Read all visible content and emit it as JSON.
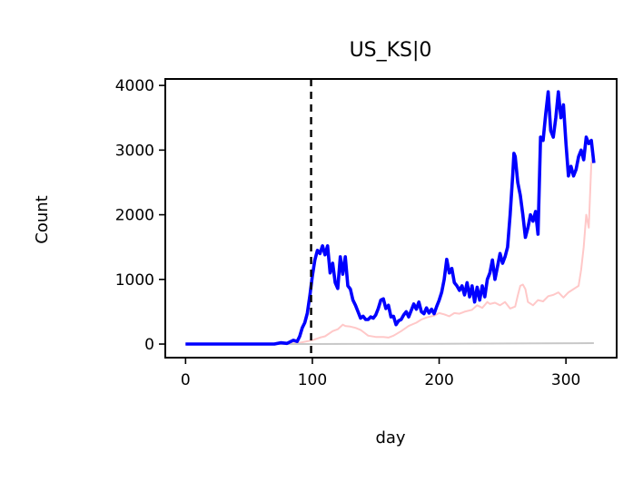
{
  "chart_data": {
    "type": "line",
    "title": "US_KS|0",
    "xlabel": "day",
    "ylabel": "Count",
    "xlim": [
      -16,
      340
    ],
    "ylim": [
      -210,
      4100
    ],
    "xticks": [
      0,
      100,
      200,
      300
    ],
    "yticks": [
      0,
      1000,
      2000,
      3000,
      4000
    ],
    "vline_x": 99,
    "series": [
      {
        "color": "#0000ff",
        "style": "thick",
        "points": [
          [
            0,
            0
          ],
          [
            70,
            0
          ],
          [
            75,
            20
          ],
          [
            80,
            10
          ],
          [
            85,
            60
          ],
          [
            88,
            40
          ],
          [
            90,
            120
          ],
          [
            92,
            250
          ],
          [
            94,
            330
          ],
          [
            96,
            480
          ],
          [
            98,
            750
          ],
          [
            100,
            1050
          ],
          [
            102,
            1300
          ],
          [
            104,
            1450
          ],
          [
            106,
            1400
          ],
          [
            108,
            1520
          ],
          [
            110,
            1380
          ],
          [
            112,
            1520
          ],
          [
            114,
            1100
          ],
          [
            116,
            1250
          ],
          [
            118,
            950
          ],
          [
            120,
            860
          ],
          [
            122,
            1350
          ],
          [
            124,
            1080
          ],
          [
            126,
            1350
          ],
          [
            128,
            900
          ],
          [
            130,
            850
          ],
          [
            132,
            680
          ],
          [
            134,
            600
          ],
          [
            136,
            500
          ],
          [
            138,
            400
          ],
          [
            140,
            430
          ],
          [
            142,
            380
          ],
          [
            144,
            380
          ],
          [
            146,
            420
          ],
          [
            148,
            400
          ],
          [
            150,
            450
          ],
          [
            152,
            550
          ],
          [
            154,
            680
          ],
          [
            156,
            700
          ],
          [
            158,
            550
          ],
          [
            160,
            600
          ],
          [
            162,
            420
          ],
          [
            164,
            430
          ],
          [
            166,
            300
          ],
          [
            168,
            360
          ],
          [
            170,
            380
          ],
          [
            172,
            450
          ],
          [
            174,
            500
          ],
          [
            176,
            420
          ],
          [
            178,
            520
          ],
          [
            180,
            620
          ],
          [
            182,
            540
          ],
          [
            184,
            650
          ],
          [
            186,
            500
          ],
          [
            188,
            470
          ],
          [
            190,
            560
          ],
          [
            192,
            480
          ],
          [
            194,
            540
          ],
          [
            196,
            470
          ],
          [
            198,
            580
          ],
          [
            200,
            680
          ],
          [
            202,
            800
          ],
          [
            204,
            1000
          ],
          [
            206,
            1310
          ],
          [
            208,
            1100
          ],
          [
            210,
            1170
          ],
          [
            212,
            950
          ],
          [
            214,
            900
          ],
          [
            216,
            830
          ],
          [
            218,
            900
          ],
          [
            220,
            760
          ],
          [
            222,
            950
          ],
          [
            224,
            730
          ],
          [
            226,
            900
          ],
          [
            228,
            650
          ],
          [
            230,
            880
          ],
          [
            232,
            680
          ],
          [
            234,
            900
          ],
          [
            236,
            730
          ],
          [
            238,
            1000
          ],
          [
            240,
            1100
          ],
          [
            242,
            1300
          ],
          [
            244,
            1000
          ],
          [
            246,
            1200
          ],
          [
            248,
            1400
          ],
          [
            250,
            1250
          ],
          [
            252,
            1350
          ],
          [
            254,
            1500
          ],
          [
            256,
            2000
          ],
          [
            258,
            2600
          ],
          [
            259,
            2950
          ],
          [
            260,
            2900
          ],
          [
            262,
            2500
          ],
          [
            264,
            2300
          ],
          [
            266,
            2000
          ],
          [
            268,
            1650
          ],
          [
            270,
            1800
          ],
          [
            272,
            2000
          ],
          [
            274,
            1900
          ],
          [
            276,
            2050
          ],
          [
            278,
            1700
          ],
          [
            280,
            3200
          ],
          [
            282,
            3150
          ],
          [
            284,
            3550
          ],
          [
            286,
            3900
          ],
          [
            288,
            3300
          ],
          [
            290,
            3200
          ],
          [
            292,
            3500
          ],
          [
            294,
            3900
          ],
          [
            296,
            3500
          ],
          [
            298,
            3700
          ],
          [
            300,
            3100
          ],
          [
            302,
            2600
          ],
          [
            304,
            2750
          ],
          [
            306,
            2600
          ],
          [
            308,
            2700
          ],
          [
            310,
            2900
          ],
          [
            312,
            3000
          ],
          [
            314,
            2850
          ],
          [
            316,
            3200
          ],
          [
            318,
            3100
          ],
          [
            320,
            3150
          ],
          [
            322,
            2800
          ]
        ]
      },
      {
        "color": "#ffc8c8",
        "style": "thin",
        "points": [
          [
            0,
            0
          ],
          [
            80,
            0
          ],
          [
            90,
            20
          ],
          [
            100,
            60
          ],
          [
            106,
            100
          ],
          [
            110,
            120
          ],
          [
            116,
            200
          ],
          [
            120,
            230
          ],
          [
            124,
            300
          ],
          [
            126,
            280
          ],
          [
            130,
            270
          ],
          [
            134,
            250
          ],
          [
            138,
            220
          ],
          [
            140,
            190
          ],
          [
            144,
            130
          ],
          [
            150,
            110
          ],
          [
            156,
            110
          ],
          [
            160,
            100
          ],
          [
            164,
            130
          ],
          [
            170,
            200
          ],
          [
            176,
            280
          ],
          [
            182,
            330
          ],
          [
            186,
            380
          ],
          [
            190,
            410
          ],
          [
            196,
            440
          ],
          [
            200,
            480
          ],
          [
            204,
            460
          ],
          [
            208,
            430
          ],
          [
            212,
            480
          ],
          [
            216,
            470
          ],
          [
            220,
            500
          ],
          [
            226,
            530
          ],
          [
            230,
            600
          ],
          [
            234,
            560
          ],
          [
            238,
            650
          ],
          [
            240,
            620
          ],
          [
            244,
            640
          ],
          [
            248,
            600
          ],
          [
            252,
            650
          ],
          [
            256,
            550
          ],
          [
            260,
            580
          ],
          [
            262,
            750
          ],
          [
            264,
            900
          ],
          [
            266,
            920
          ],
          [
            268,
            850
          ],
          [
            270,
            650
          ],
          [
            274,
            600
          ],
          [
            278,
            680
          ],
          [
            282,
            660
          ],
          [
            286,
            740
          ],
          [
            290,
            760
          ],
          [
            294,
            800
          ],
          [
            298,
            720
          ],
          [
            302,
            800
          ],
          [
            306,
            850
          ],
          [
            310,
            900
          ],
          [
            312,
            1150
          ],
          [
            314,
            1500
          ],
          [
            316,
            2000
          ],
          [
            318,
            1800
          ],
          [
            320,
            2800
          ],
          [
            322,
            2900
          ]
        ]
      },
      {
        "color": "#c8c8c8",
        "style": "thin",
        "points": [
          [
            0,
            0
          ],
          [
            100,
            0
          ],
          [
            200,
            5
          ],
          [
            280,
            10
          ],
          [
            322,
            15
          ]
        ]
      }
    ]
  }
}
